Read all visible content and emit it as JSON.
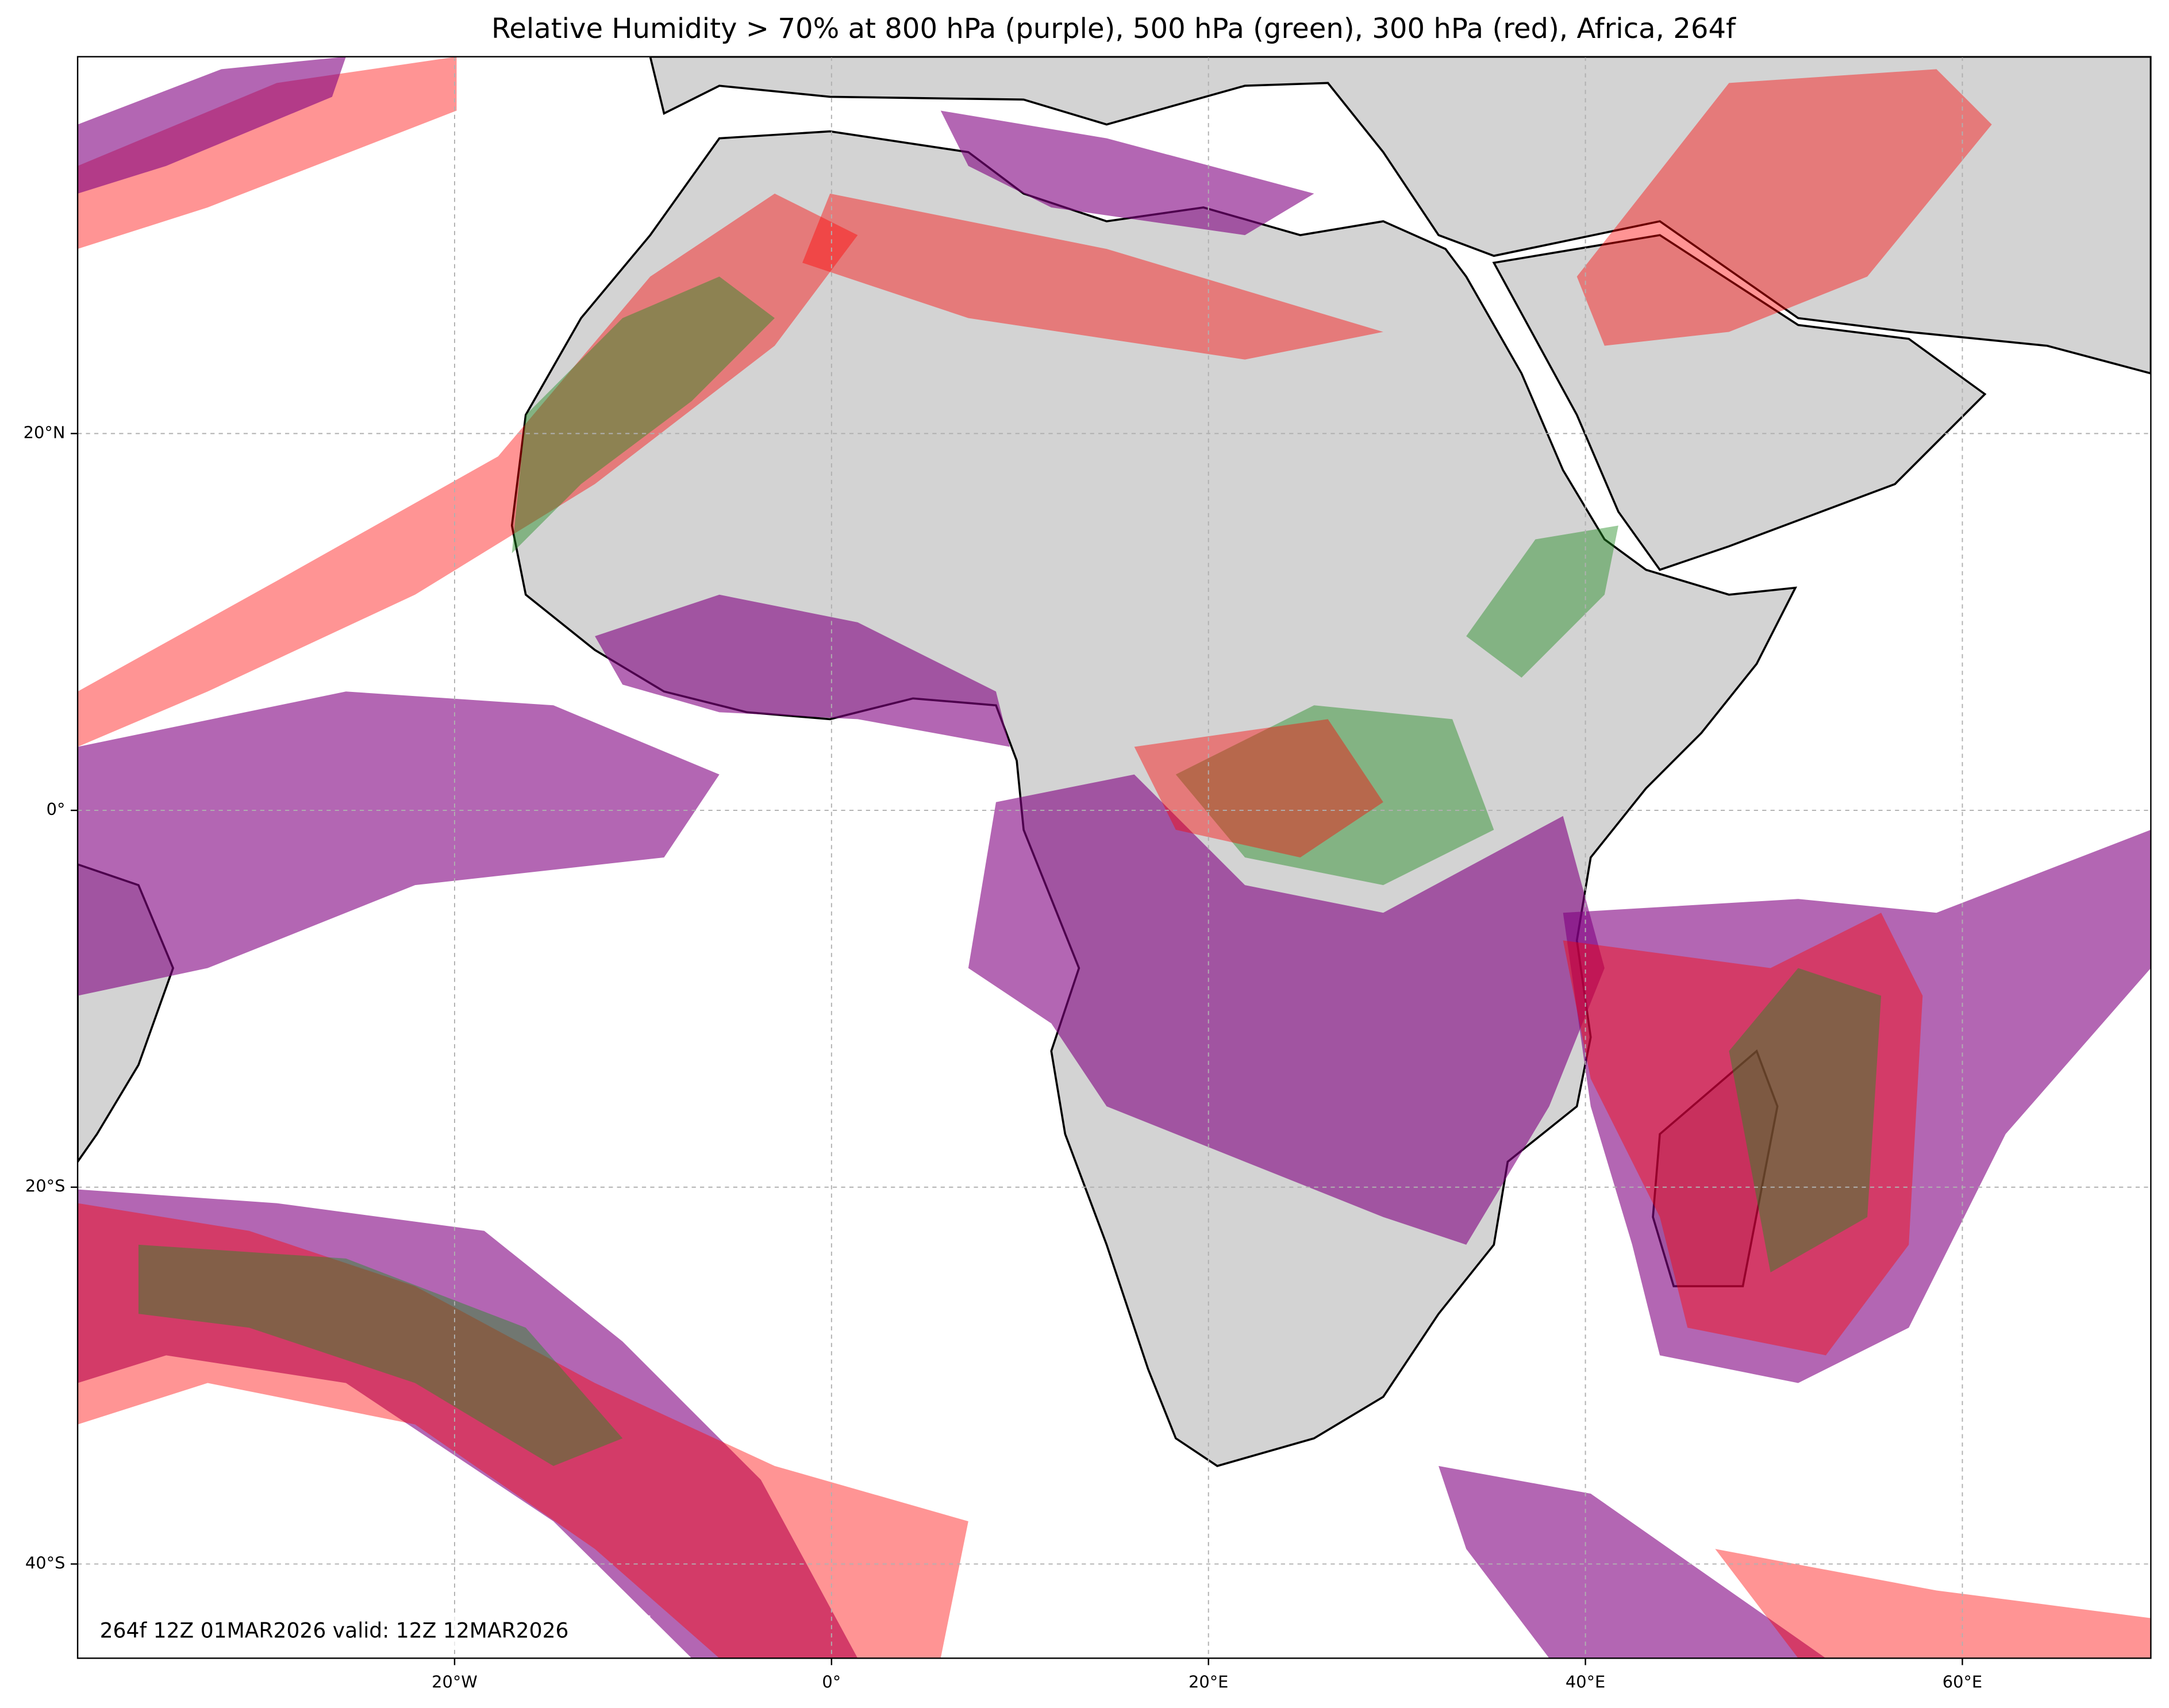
{
  "map": {
    "title": "Relative Humidity > 70% at 800 hPa (purple), 500 hPa (green), 300 hPa (red), Africa, 264f",
    "annotation": "264f 12Z 01MAR2026 valid: 12Z 12MAR2026",
    "xlim": [
      -40,
      70
    ],
    "ylim": [
      -45,
      40
    ],
    "xticks": [
      {
        "value": -20,
        "label": "20°W"
      },
      {
        "value": 0,
        "label": "0°"
      },
      {
        "value": 20,
        "label": "20°E"
      },
      {
        "value": 40,
        "label": "40°E"
      },
      {
        "value": 60,
        "label": "60°E"
      }
    ],
    "yticks": [
      {
        "value": 20,
        "label": "20°N"
      },
      {
        "value": 0,
        "label": "0°"
      },
      {
        "value": -20,
        "label": "20°S"
      },
      {
        "value": -40,
        "label": "40°S"
      }
    ],
    "grid": true
  }
}
